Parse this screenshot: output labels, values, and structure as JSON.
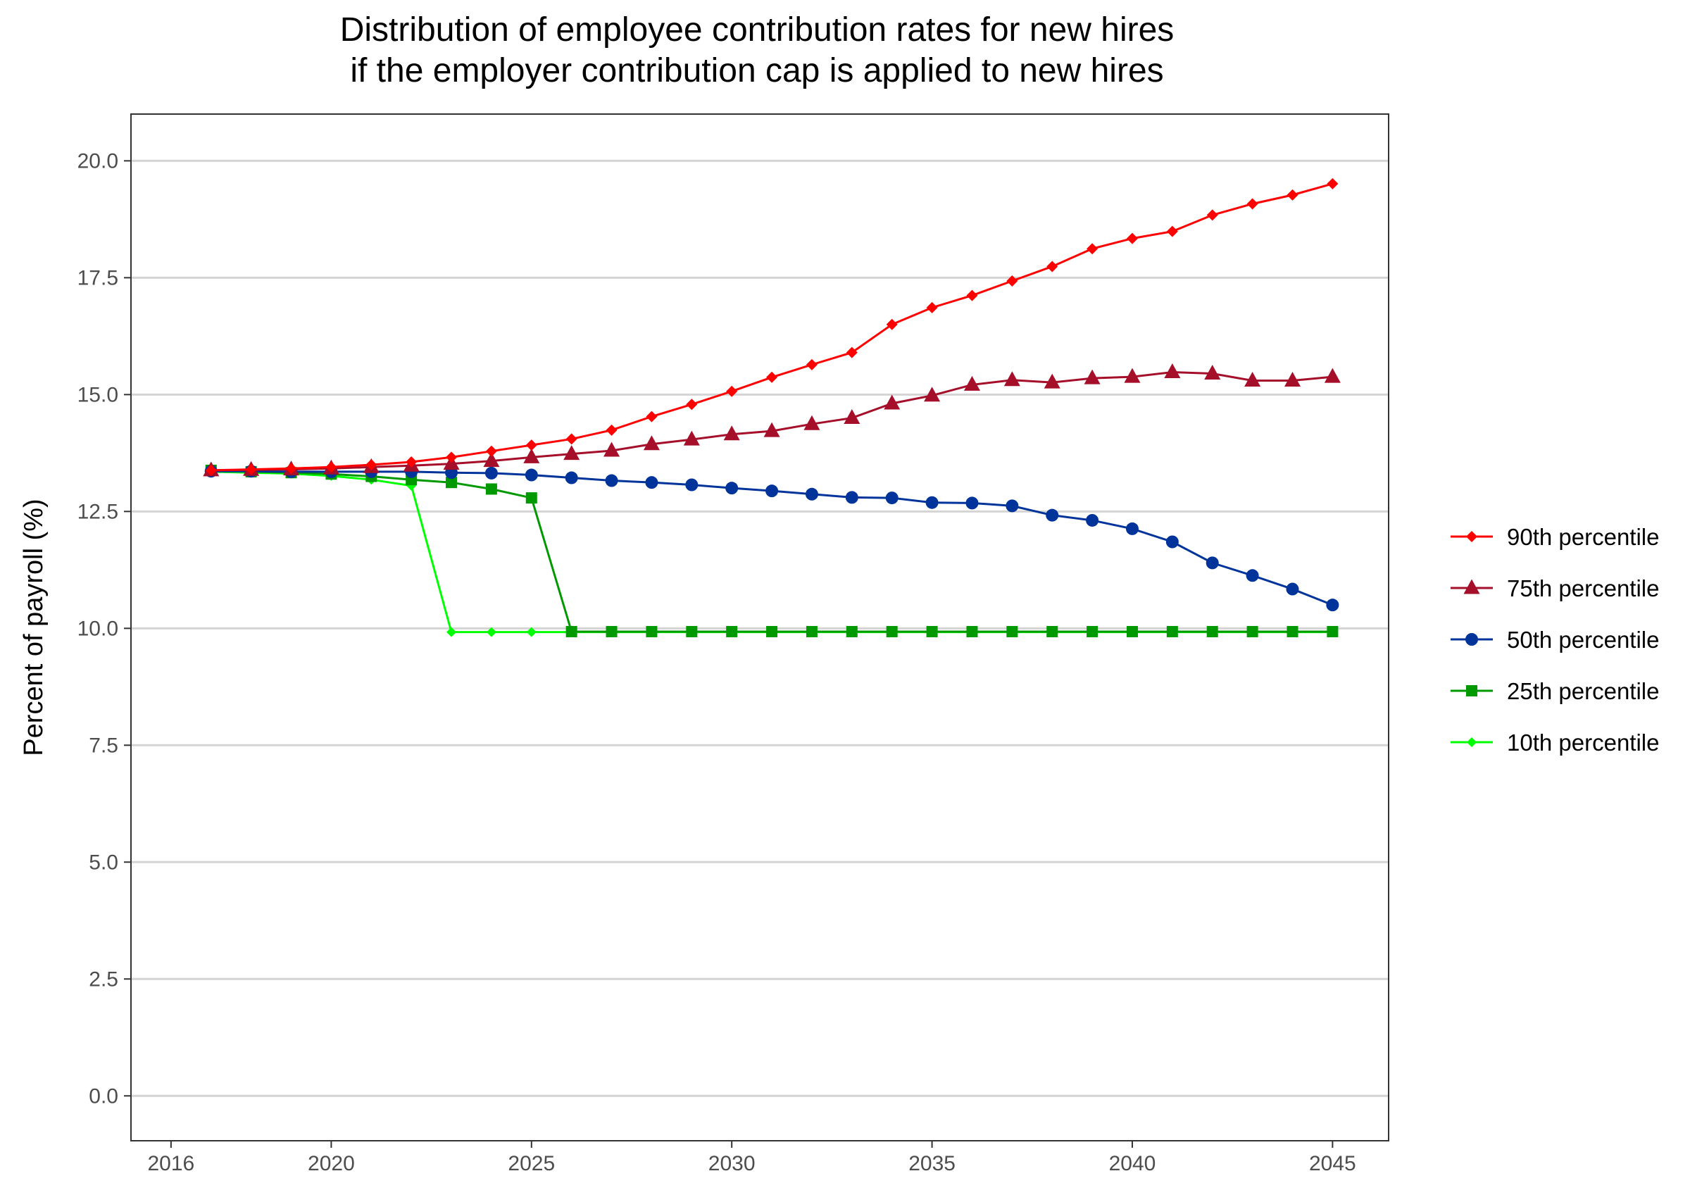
{
  "chart_data": {
    "type": "line",
    "title_lines": [
      "Distribution of employee contribution rates for new hires",
      "if the employer contribution cap is applied to new hires"
    ],
    "xlabel": "",
    "ylabel": "Percent of payroll (%)",
    "xlim": [
      2015,
      2046.4
    ],
    "ylim": [
      -0.96,
      21.0
    ],
    "x_ticks": [
      2016,
      2020,
      2025,
      2030,
      2035,
      2040,
      2045
    ],
    "x_tick_labels": [
      "2016",
      "2020",
      "2025",
      "2030",
      "2035",
      "2040",
      "2045"
    ],
    "y_ticks": [
      0,
      2.5,
      5,
      7.5,
      10,
      12.5,
      15,
      17.5,
      20
    ],
    "y_tick_labels": [
      "0.0",
      "2.5",
      "5.0",
      "7.5",
      "10.0",
      "12.5",
      "15.0",
      "17.5",
      "20.0"
    ],
    "grid": "horizontal major lines",
    "legend_position": "right",
    "x": [
      2017,
      2018,
      2019,
      2020,
      2021,
      2022,
      2023,
      2024,
      2025,
      2026,
      2027,
      2028,
      2029,
      2030,
      2031,
      2032,
      2033,
      2034,
      2035,
      2036,
      2037,
      2038,
      2039,
      2040,
      2041,
      2042,
      2043,
      2044,
      2045
    ],
    "series": [
      {
        "name": "90th percentile",
        "color": "#ff0000",
        "marker": "diamond",
        "values": [
          13.38,
          13.4,
          13.42,
          13.45,
          13.5,
          13.56,
          13.66,
          13.79,
          13.92,
          14.05,
          14.24,
          14.53,
          14.79,
          15.07,
          15.37,
          15.64,
          15.9,
          16.5,
          16.86,
          17.12,
          17.43,
          17.74,
          18.12,
          18.34,
          18.49,
          18.84,
          19.08,
          19.27,
          19.51
        ]
      },
      {
        "name": "75th percentile",
        "color": "#a50f2a",
        "marker": "triangle",
        "values": [
          13.38,
          13.39,
          13.4,
          13.42,
          13.45,
          13.48,
          13.52,
          13.58,
          13.66,
          13.73,
          13.8,
          13.94,
          14.04,
          14.15,
          14.22,
          14.37,
          14.5,
          14.81,
          14.98,
          15.21,
          15.31,
          15.26,
          15.35,
          15.38,
          15.48,
          15.45,
          15.3,
          15.3,
          15.38
        ]
      },
      {
        "name": "50th percentile",
        "color": "#00349a",
        "marker": "circle",
        "values": [
          13.36,
          13.36,
          13.35,
          13.35,
          13.35,
          13.35,
          13.33,
          13.32,
          13.28,
          13.22,
          13.16,
          13.12,
          13.07,
          13.0,
          12.94,
          12.87,
          12.8,
          12.79,
          12.69,
          12.68,
          12.62,
          12.42,
          12.31,
          12.13,
          11.85,
          11.4,
          11.13,
          10.84,
          10.5
        ]
      },
      {
        "name": "25th percentile",
        "color": "#009a00",
        "marker": "square",
        "values": [
          13.38,
          13.35,
          13.33,
          13.3,
          13.25,
          13.18,
          13.12,
          12.98,
          12.79,
          9.93,
          9.93,
          9.93,
          9.93,
          9.93,
          9.93,
          9.93,
          9.93,
          9.93,
          9.93,
          9.93,
          9.93,
          9.93,
          9.93,
          9.93,
          9.93,
          9.93,
          9.93,
          9.93,
          9.93
        ]
      },
      {
        "name": "10th percentile",
        "color": "#00ff00",
        "marker": "diamond",
        "values": [
          13.35,
          13.33,
          13.31,
          13.26,
          13.18,
          13.05,
          9.92,
          9.92,
          9.92,
          9.92,
          9.92,
          9.92,
          9.92,
          9.92,
          9.92,
          9.92,
          9.92,
          9.92,
          9.92,
          9.92,
          9.92,
          9.92,
          9.92,
          9.92,
          9.92,
          9.92,
          9.92,
          9.92,
          9.92
        ]
      }
    ]
  }
}
